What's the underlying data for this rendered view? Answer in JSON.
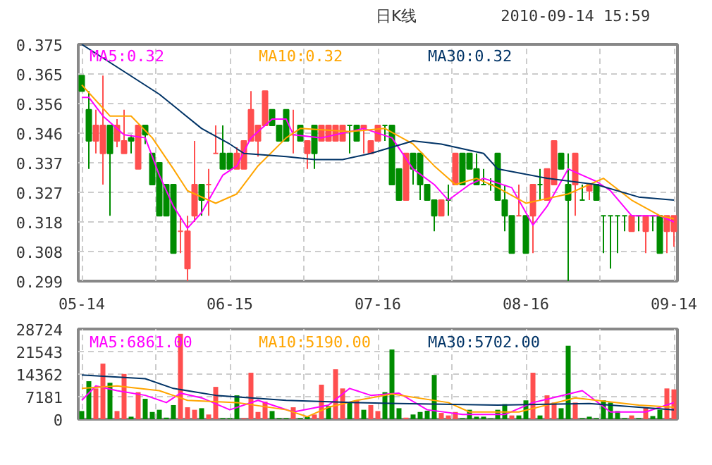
{
  "chart_data": [
    {
      "type": "candlestick",
      "title": "日K线",
      "annotations": [
        "2010-09-14 15:59"
      ],
      "categories": [
        "05-14",
        null,
        null,
        null,
        null,
        null,
        null,
        null,
        null,
        null,
        null,
        null,
        null,
        null,
        null,
        null,
        null,
        null,
        null,
        null,
        null,
        "06-15",
        null,
        null,
        null,
        null,
        null,
        null,
        null,
        null,
        null,
        null,
        null,
        null,
        null,
        null,
        null,
        null,
        null,
        null,
        null,
        null,
        "07-16",
        null,
        null,
        null,
        null,
        null,
        null,
        null,
        null,
        null,
        null,
        null,
        null,
        null,
        null,
        null,
        null,
        null,
        null,
        null,
        null,
        "08-16",
        null,
        null,
        null,
        null,
        null,
        null,
        null,
        null,
        null,
        null,
        null,
        null,
        null,
        null,
        null,
        null,
        null,
        null,
        null,
        null,
        "09-14"
      ],
      "ohlc": [
        [
          0.365,
          0.365,
          0.36,
          0.36
        ],
        [
          0.354,
          0.36,
          0.335,
          0.344
        ],
        [
          0.344,
          0.354,
          0.34,
          0.349
        ],
        [
          0.34,
          0.365,
          0.33,
          0.349
        ],
        [
          0.349,
          0.349,
          0.32,
          0.34
        ],
        [
          0.344,
          0.351,
          0.342,
          0.349
        ],
        [
          0.34,
          0.354,
          0.34,
          0.344
        ],
        [
          0.345,
          0.346,
          0.34,
          0.344
        ],
        [
          0.335,
          0.349,
          0.335,
          0.349
        ],
        [
          0.349,
          0.349,
          0.343,
          0.346
        ],
        [
          0.34,
          0.34,
          0.33,
          0.33
        ],
        [
          0.337,
          0.337,
          0.32,
          0.32
        ],
        [
          0.33,
          0.33,
          0.32,
          0.32
        ],
        [
          0.33,
          0.33,
          0.308,
          0.308
        ],
        [
          0.315,
          0.32,
          0.308,
          0.315
        ],
        [
          0.303,
          0.32,
          0.299,
          0.315
        ],
        [
          0.32,
          0.344,
          0.318,
          0.33
        ],
        [
          0.33,
          0.33,
          0.32,
          0.325
        ],
        [
          0.33,
          0.335,
          0.32,
          0.33
        ],
        [
          0.34,
          0.349,
          0.34,
          0.34
        ],
        [
          0.34,
          0.349,
          0.335,
          0.335
        ],
        [
          0.34,
          0.34,
          0.335,
          0.335
        ],
        [
          0.335,
          0.342,
          0.335,
          0.34
        ],
        [
          0.335,
          0.344,
          0.335,
          0.344
        ],
        [
          0.344,
          0.36,
          0.344,
          0.354
        ],
        [
          0.344,
          0.349,
          0.339,
          0.349
        ],
        [
          0.349,
          0.36,
          0.349,
          0.36
        ],
        [
          0.354,
          0.354,
          0.349,
          0.349
        ],
        [
          0.349,
          0.349,
          0.344,
          0.344
        ],
        [
          0.354,
          0.354,
          0.344,
          0.344
        ],
        [
          0.346,
          0.354,
          0.34,
          0.346
        ],
        [
          0.349,
          0.349,
          0.344,
          0.344
        ],
        [
          0.34,
          0.344,
          0.335,
          0.344
        ],
        [
          0.349,
          0.349,
          0.335,
          0.34
        ],
        [
          0.344,
          0.349,
          0.344,
          0.349
        ],
        [
          0.344,
          0.349,
          0.344,
          0.349
        ],
        [
          0.344,
          0.349,
          0.344,
          0.349
        ],
        [
          0.344,
          0.349,
          0.344,
          0.349
        ],
        [
          0.349,
          0.349,
          0.34,
          0.349
        ],
        [
          0.349,
          0.349,
          0.344,
          0.344
        ],
        [
          0.348,
          0.349,
          0.34,
          0.349
        ],
        [
          0.34,
          0.344,
          0.34,
          0.344
        ],
        [
          0.344,
          0.349,
          0.344,
          0.349
        ],
        [
          0.349,
          0.349,
          0.344,
          0.349
        ],
        [
          0.349,
          0.349,
          0.33,
          0.33
        ],
        [
          0.335,
          0.335,
          0.325,
          0.325
        ],
        [
          0.325,
          0.34,
          0.325,
          0.34
        ],
        [
          0.34,
          0.34,
          0.33,
          0.335
        ],
        [
          0.34,
          0.34,
          0.325,
          0.33
        ],
        [
          0.33,
          0.33,
          0.325,
          0.325
        ],
        [
          0.325,
          0.325,
          0.315,
          0.32
        ],
        [
          0.32,
          0.325,
          0.32,
          0.325
        ],
        [
          0.325,
          0.33,
          0.32,
          0.325
        ],
        [
          0.33,
          0.34,
          0.33,
          0.34
        ],
        [
          0.34,
          0.34,
          0.33,
          0.33
        ],
        [
          0.34,
          0.34,
          0.335,
          0.335
        ],
        [
          0.335,
          0.34,
          0.33,
          0.33
        ],
        [
          0.33,
          0.335,
          0.33,
          0.33
        ],
        [
          0.33,
          0.332,
          0.328,
          0.33
        ],
        [
          0.34,
          0.34,
          0.325,
          0.325
        ],
        [
          0.325,
          0.33,
          0.315,
          0.32
        ],
        [
          0.32,
          0.32,
          0.308,
          0.308
        ],
        [
          0.32,
          0.33,
          0.32,
          0.32
        ],
        [
          0.32,
          0.32,
          0.308,
          0.308
        ],
        [
          0.32,
          0.33,
          0.308,
          0.33
        ],
        [
          0.33,
          0.335,
          0.325,
          0.33
        ],
        [
          0.325,
          0.335,
          0.325,
          0.335
        ],
        [
          0.33,
          0.344,
          0.33,
          0.344
        ],
        [
          0.34,
          0.34,
          0.335,
          0.335
        ],
        [
          0.33,
          0.34,
          0.299,
          0.325
        ],
        [
          0.33,
          0.34,
          0.32,
          0.34
        ],
        [
          0.325,
          0.33,
          0.325,
          0.325
        ],
        [
          0.328,
          0.33,
          0.325,
          0.33
        ],
        [
          0.33,
          0.33,
          0.325,
          0.325
        ],
        [
          0.32,
          0.32,
          0.308,
          0.32
        ],
        [
          0.32,
          0.32,
          0.303,
          0.32
        ],
        [
          0.32,
          0.32,
          0.308,
          0.32
        ],
        [
          0.32,
          0.32,
          0.315,
          0.32
        ],
        [
          0.315,
          0.32,
          0.315,
          0.32
        ],
        [
          0.32,
          0.32,
          0.315,
          0.32
        ],
        [
          0.315,
          0.32,
          0.308,
          0.32
        ],
        [
          0.32,
          0.32,
          0.315,
          0.32
        ],
        [
          0.32,
          0.32,
          0.308,
          0.308
        ],
        [
          0.315,
          0.32,
          0.308,
          0.32
        ],
        [
          0.315,
          0.32,
          0.31,
          0.32
        ]
      ],
      "colors": [
        "#008c00",
        "#008c00",
        "#ff4f4f",
        "#ff4f4f",
        "#008c00",
        "#ff4f4f",
        "#ff4f4f",
        "#008c00",
        "#ff4f4f",
        "#008c00",
        "#008c00",
        "#008c00",
        "#008c00",
        "#008c00",
        "#ff4f4f",
        "#ff4f4f",
        "#ff4f4f",
        "#008c00",
        "#ff4f4f",
        "#ff4f4f",
        "#008c00",
        "#008c00",
        "#ff4f4f",
        "#ff4f4f",
        "#ff4f4f",
        "#ff4f4f",
        "#ff4f4f",
        "#008c00",
        "#008c00",
        "#008c00",
        "#ff4f4f",
        "#008c00",
        "#ff4f4f",
        "#008c00",
        "#ff4f4f",
        "#ff4f4f",
        "#ff4f4f",
        "#ff4f4f",
        "#008c00",
        "#008c00",
        "#ff4f4f",
        "#ff4f4f",
        "#ff4f4f",
        "#008c00",
        "#008c00",
        "#008c00",
        "#ff4f4f",
        "#008c00",
        "#008c00",
        "#008c00",
        "#008c00",
        "#ff4f4f",
        "#008c00",
        "#ff4f4f",
        "#008c00",
        "#008c00",
        "#008c00",
        "#008c00",
        "#008c00",
        "#008c00",
        "#008c00",
        "#008c00",
        "#ff4f4f",
        "#008c00",
        "#ff4f4f",
        "#008c00",
        "#ff4f4f",
        "#ff4f4f",
        "#008c00",
        "#008c00",
        "#ff4f4f",
        "#008c00",
        "#ff4f4f",
        "#008c00",
        "#008c00",
        "#008c00",
        "#008c00",
        "#008c00",
        "#ff4f4f",
        "#008c00",
        "#ff4f4f",
        "#008c00",
        "#008c00",
        "#ff4f4f",
        "#ff4f4f"
      ],
      "series": [
        {
          "name": "MA5:0.32",
          "type": "line",
          "color": "#ff00ff",
          "values": [
            0.358,
            0.358,
            null,
            0.352,
            null,
            null,
            0.346,
            null,
            null,
            0.345,
            null,
            0.333,
            null,
            0.323,
            null,
            0.316,
            null,
            0.321,
            null,
            null,
            0.333,
            null,
            0.336,
            null,
            0.345,
            null,
            null,
            0.351,
            null,
            0.351,
            0.346,
            null,
            null,
            null,
            0.345,
            null,
            null,
            null,
            null,
            null,
            0.348,
            null,
            null,
            null,
            0.345,
            null,
            null,
            0.335,
            null,
            null,
            0.33,
            null,
            0.325,
            null,
            null,
            0.33,
            null,
            0.332,
            null,
            null,
            null,
            0.329,
            null,
            null,
            0.317,
            null,
            0.323,
            null,
            null,
            0.335,
            null,
            null,
            null,
            0.331,
            null,
            0.328,
            null,
            null,
            0.32,
            null,
            null,
            null,
            0.32,
            null,
            0.318
          ]
        },
        {
          "name": "MA10:0.32",
          "type": "line",
          "color": "#ffa500",
          "values": [
            0.362,
            null,
            null,
            null,
            0.352,
            null,
            null,
            0.352,
            null,
            null,
            0.345,
            null,
            null,
            0.335,
            null,
            0.328,
            null,
            null,
            null,
            0.324,
            null,
            null,
            0.327,
            null,
            null,
            0.336,
            null,
            null,
            null,
            0.345,
            null,
            0.348,
            null,
            null,
            null,
            null,
            null,
            null,
            0.347,
            null,
            null,
            null,
            null,
            0.348,
            null,
            null,
            null,
            0.343,
            null,
            null,
            0.336,
            null,
            null,
            0.33,
            null,
            null,
            0.332,
            null,
            null,
            0.329,
            null,
            null,
            null,
            0.324,
            null,
            null,
            null,
            null,
            null,
            0.327,
            null,
            null,
            null,
            null,
            0.332,
            null,
            null,
            null,
            0.325,
            null,
            null,
            null,
            0.32,
            null,
            0.319
          ]
        },
        {
          "name": "MA30:0.32",
          "type": "line",
          "color": "#003366",
          "values": [
            0.375,
            null,
            null,
            null,
            null,
            null,
            null,
            null,
            null,
            null,
            null,
            0.359,
            null,
            null,
            null,
            null,
            null,
            0.348,
            null,
            null,
            null,
            0.343,
            null,
            0.34,
            null,
            null,
            null,
            null,
            null,
            0.339,
            null,
            null,
            null,
            0.338,
            null,
            null,
            null,
            0.338,
            null,
            null,
            null,
            0.34,
            null,
            null,
            null,
            null,
            null,
            0.344,
            null,
            null,
            null,
            0.343,
            null,
            null,
            null,
            null,
            null,
            0.34,
            null,
            0.335,
            null,
            null,
            null,
            null,
            null,
            null,
            0.332,
            null,
            null,
            null,
            null,
            null,
            null,
            0.33,
            null,
            null,
            null,
            null,
            null,
            0.326,
            null,
            null,
            null,
            null,
            0.325
          ]
        }
      ],
      "ylim": [
        0.299,
        0.375
      ],
      "yticks": [
        0.299,
        {
          "value": 0.3085,
          "label": "0.308"
        },
        0.318,
        {
          "value": 0.3275,
          "label": "0.327"
        },
        0.337,
        {
          "value": 0.3465,
          "label": "0.346"
        },
        0.356,
        {
          "value": 0.3655,
          "label": "0.365"
        },
        0.375
      ],
      "grid": true
    },
    {
      "type": "bar",
      "categories": [
        null,
        null,
        null,
        null,
        null,
        null,
        null,
        null,
        null,
        null,
        null,
        null,
        null,
        null,
        null,
        null,
        null,
        null,
        null,
        null,
        null,
        null,
        null,
        null,
        null,
        null,
        null,
        null,
        null,
        null,
        null,
        null,
        null,
        null,
        null,
        null,
        null,
        null,
        null,
        null,
        null,
        null,
        null,
        null,
        null,
        null,
        null,
        null,
        null,
        null,
        null,
        null,
        null,
        null,
        null,
        null,
        null,
        null,
        null,
        null,
        null,
        null,
        null,
        null,
        null,
        null,
        null,
        null,
        null,
        null,
        null,
        null,
        null,
        null,
        null,
        null,
        null,
        null,
        null,
        null,
        null,
        null,
        null,
        null,
        null
      ],
      "tick_labels": "y",
      "values": [
        2600,
        12100,
        9800,
        17700,
        11600,
        2600,
        14400,
        800,
        8600,
        6500,
        2300,
        3000,
        500,
        4500,
        27200,
        3800,
        3000,
        3500,
        1500,
        10300,
        300,
        300,
        7600,
        300,
        14800,
        2300,
        5600,
        2600,
        300,
        300,
        3800,
        300,
        800,
        1500,
        11000,
        4200,
        15900,
        9800,
        5300,
        6000,
        3000,
        4500,
        2600,
        8600,
        22200,
        3500,
        500,
        1500,
        2300,
        2700,
        14100,
        2000,
        1200,
        2300,
        300,
        3000,
        800,
        800,
        200,
        3000,
        4800,
        1200,
        1200,
        6000,
        14800,
        1200,
        7600,
        5300,
        3500,
        23400,
        5300,
        300,
        800,
        300,
        6000,
        5300,
        2600,
        300,
        1200,
        300,
        3800,
        1000,
        3000,
        9800,
        9500
      ],
      "colors": [
        "#008c00",
        "#008c00",
        "#ff4f4f",
        "#ff4f4f",
        "#008c00",
        "#ff4f4f",
        "#ff4f4f",
        "#008c00",
        "#ff4f4f",
        "#008c00",
        "#008c00",
        "#008c00",
        "#008c00",
        "#008c00",
        "#ff4f4f",
        "#ff4f4f",
        "#ff4f4f",
        "#008c00",
        "#ff4f4f",
        "#ff4f4f",
        "#008c00",
        "#008c00",
        "#008c00",
        "#ff4f4f",
        "#ff4f4f",
        "#ff4f4f",
        "#ff4f4f",
        "#008c00",
        "#008c00",
        "#008c00",
        "#ff4f4f",
        "#008c00",
        "#008c00",
        "#ff4f4f",
        "#ff4f4f",
        "#008c00",
        "#ff4f4f",
        "#ff4f4f",
        "#008c00",
        "#ff4f4f",
        "#008c00",
        "#ff4f4f",
        "#ff4f4f",
        "#008c00",
        "#008c00",
        "#008c00",
        "#ff4f4f",
        "#008c00",
        "#008c00",
        "#008c00",
        "#008c00",
        "#ff4f4f",
        "#ff4f4f",
        "#ff4f4f",
        "#008c00",
        "#008c00",
        "#008c00",
        "#008c00",
        "#008c00",
        "#008c00",
        "#008c00",
        "#ff4f4f",
        "#008c00",
        "#008c00",
        "#ff4f4f",
        "#008c00",
        "#ff4f4f",
        "#ff4f4f",
        "#008c00",
        "#008c00",
        "#ff4f4f",
        "#008c00",
        "#008c00",
        "#008c00",
        "#008c00",
        "#008c00",
        "#008c00",
        "#008c00",
        "#ff4f4f",
        "#008c00",
        "#ff4f4f",
        "#008c00",
        "#008c00",
        "#ff4f4f",
        "#ff4f4f"
      ],
      "series": [
        {
          "name": "MA5:6861.00",
          "type": "line",
          "color": "#ff00ff",
          "values": [
            6000,
            null,
            10600,
            null,
            null,
            9100,
            null,
            null,
            null,
            7600,
            null,
            null,
            5300,
            null,
            8300,
            null,
            null,
            6800,
            null,
            null,
            null,
            3000,
            null,
            null,
            null,
            6000,
            null,
            null,
            null,
            null,
            2300,
            null,
            null,
            null,
            null,
            4500,
            null,
            null,
            9800,
            null,
            null,
            7600,
            null,
            null,
            null,
            8300,
            null,
            null,
            null,
            3000,
            null,
            null,
            null,
            null,
            1500,
            null,
            null,
            null,
            null,
            null,
            1500,
            null,
            null,
            null,
            5300,
            null,
            null,
            null,
            null,
            null,
            null,
            9100,
            null,
            null,
            null,
            2300,
            null,
            null,
            null,
            null,
            2300,
            null,
            null,
            null,
            5300
          ]
        },
        {
          "name": "MA10:5190.00",
          "type": "line",
          "color": "#ffa500",
          "values": [
            9800,
            null,
            null,
            null,
            null,
            10600,
            null,
            null,
            null,
            null,
            null,
            9100,
            null,
            null,
            null,
            6000,
            null,
            null,
            null,
            null,
            null,
            null,
            5300,
            null,
            null,
            null,
            null,
            null,
            null,
            3000,
            null,
            null,
            800,
            null,
            null,
            3800,
            null,
            null,
            null,
            6000,
            null,
            null,
            null,
            null,
            8000,
            null,
            null,
            null,
            null,
            null,
            null,
            null,
            5300,
            null,
            null,
            2300,
            null,
            null,
            null,
            null,
            null,
            null,
            2300,
            null,
            null,
            null,
            null,
            null,
            null,
            null,
            6800,
            null,
            null,
            null,
            null,
            null,
            null,
            null,
            null,
            4500,
            null,
            null,
            null,
            null,
            3800
          ]
        },
        {
          "name": "MA30:5702.00",
          "type": "line",
          "color": "#003366",
          "values": [
            14100,
            null,
            null,
            null,
            null,
            null,
            null,
            null,
            null,
            12900,
            null,
            null,
            null,
            9800,
            null,
            null,
            null,
            null,
            null,
            7600,
            null,
            null,
            null,
            null,
            null,
            null,
            null,
            null,
            null,
            6000,
            null,
            null,
            null,
            null,
            null,
            null,
            null,
            null,
            null,
            5300,
            null,
            null,
            null,
            null,
            null,
            5000,
            null,
            null,
            null,
            null,
            null,
            null,
            null,
            null,
            null,
            null,
            null,
            null,
            null,
            4500,
            null,
            null,
            null,
            null,
            null,
            null,
            null,
            null,
            null,
            null,
            null,
            null,
            5000,
            null,
            null,
            null,
            null,
            null,
            null,
            null,
            null,
            null,
            null,
            null,
            3000
          ]
        }
      ],
      "ylim": [
        0,
        28724
      ],
      "yticks": [
        0,
        7181,
        14362,
        21543,
        28724
      ],
      "grid": true
    }
  ]
}
